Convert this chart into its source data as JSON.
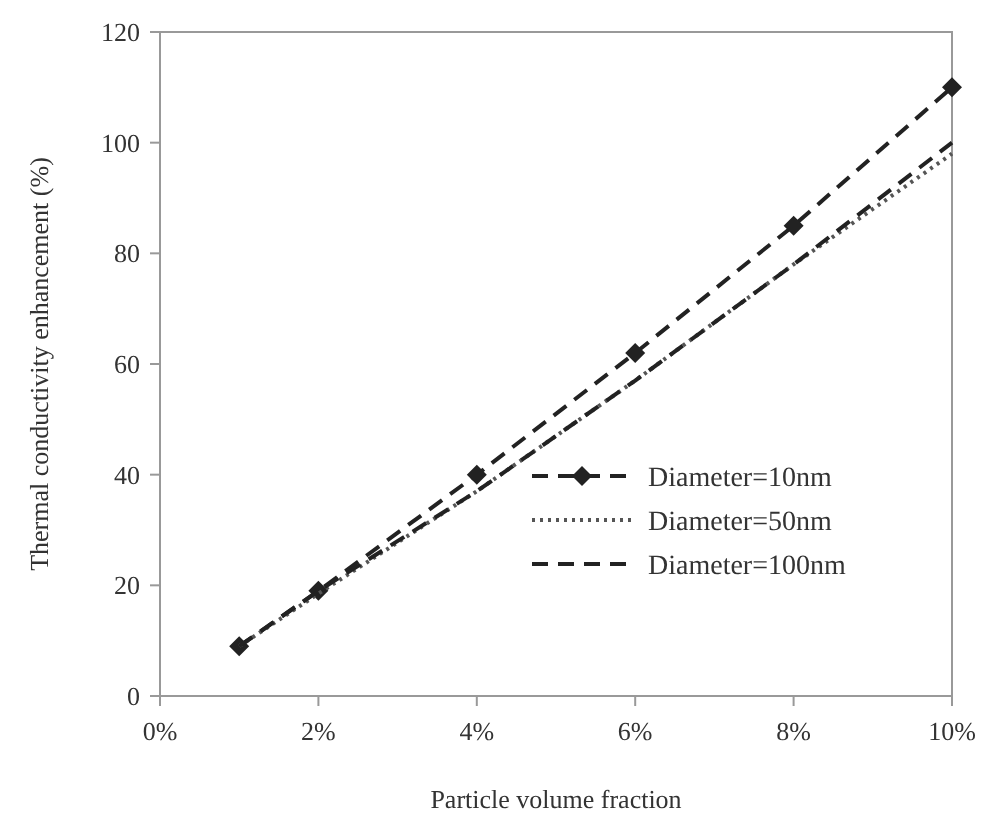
{
  "chart_data": {
    "type": "line",
    "xlabel": "Particle volume fraction",
    "ylabel": "Thermal conductivity enhancement (%)",
    "x": [
      1,
      2,
      4,
      6,
      8,
      10
    ],
    "xlim": [
      0,
      10
    ],
    "xticks": [
      {
        "value": 0,
        "label": "0%"
      },
      {
        "value": 2,
        "label": "2%"
      },
      {
        "value": 4,
        "label": "4%"
      },
      {
        "value": 6,
        "label": "6%"
      },
      {
        "value": 8,
        "label": "8%"
      },
      {
        "value": 10,
        "label": "10%"
      }
    ],
    "ylim": [
      0,
      120
    ],
    "yticks": [
      0,
      20,
      40,
      60,
      80,
      100,
      120
    ],
    "legend": "bottom right",
    "series": [
      {
        "name": "Diameter=10nm",
        "color": "#222222",
        "values": [
          9,
          19,
          40,
          62,
          85,
          110
        ],
        "marker": "diamond",
        "line_style": "dashed"
      },
      {
        "name": "Diameter=50nm",
        "color": "#555555",
        "values": [
          9,
          18.5,
          37,
          57,
          78,
          98
        ],
        "marker": "none",
        "line_style": "dotted"
      },
      {
        "name": "Diameter=100nm",
        "color": "#222222",
        "values": [
          9,
          19,
          37,
          57,
          78,
          100
        ],
        "marker": "none",
        "line_style": "dashed"
      }
    ]
  }
}
